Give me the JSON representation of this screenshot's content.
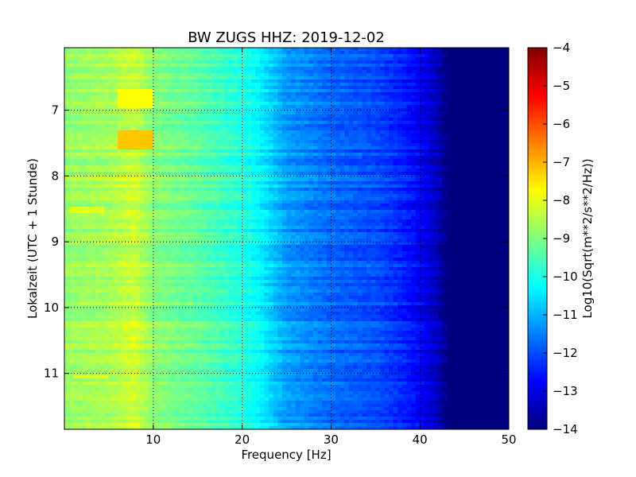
{
  "chart_data": {
    "type": "heatmap",
    "title": "BW ZUGS HHZ: 2019-12-02",
    "xlabel": "Frequency [Hz]",
    "ylabel": "Lokalzeit (UTC + 1 Stunde)",
    "xlim": [
      0,
      50
    ],
    "ylim": [
      6.05,
      11.85
    ],
    "y_inverted": true,
    "xticks": [
      10,
      20,
      30,
      40,
      50
    ],
    "yticks": [
      7,
      8,
      9,
      10,
      11
    ],
    "grid": true,
    "colorbar": {
      "label": "Log10(Sqrt(m**2/s**2/Hz))",
      "range": [
        -14,
        -4
      ],
      "ticks": [
        -4,
        -5,
        -6,
        -7,
        -8,
        -9,
        -10,
        -11,
        -12,
        -13,
        -14
      ],
      "colormap": "jet"
    },
    "spectrum_profile": {
      "frequencies_hz": [
        0,
        2,
        5,
        8,
        10,
        15,
        20,
        22,
        25,
        30,
        35,
        38,
        40,
        42,
        43,
        50
      ],
      "log10_level": [
        -8.8,
        -8.7,
        -8.6,
        -8.2,
        -8.9,
        -9.3,
        -9.9,
        -10.3,
        -11.2,
        -11.7,
        -12.0,
        -12.4,
        -12.8,
        -13.4,
        -14.0,
        -14.0
      ]
    },
    "features": [
      {
        "frequency_hz": 8,
        "time_start": 6.7,
        "time_end": 6.95,
        "log10_level": -7.8
      },
      {
        "frequency_hz": 8,
        "time_start": 7.3,
        "time_end": 7.6,
        "log10_level": -7.2
      },
      {
        "frequency_hz": 2.5,
        "time_start": 8.48,
        "time_end": 8.56,
        "log10_level": -8.0
      },
      {
        "frequency_hz": 3,
        "time_start": 11.03,
        "time_end": 11.1,
        "log10_level": -8.1
      }
    ]
  }
}
